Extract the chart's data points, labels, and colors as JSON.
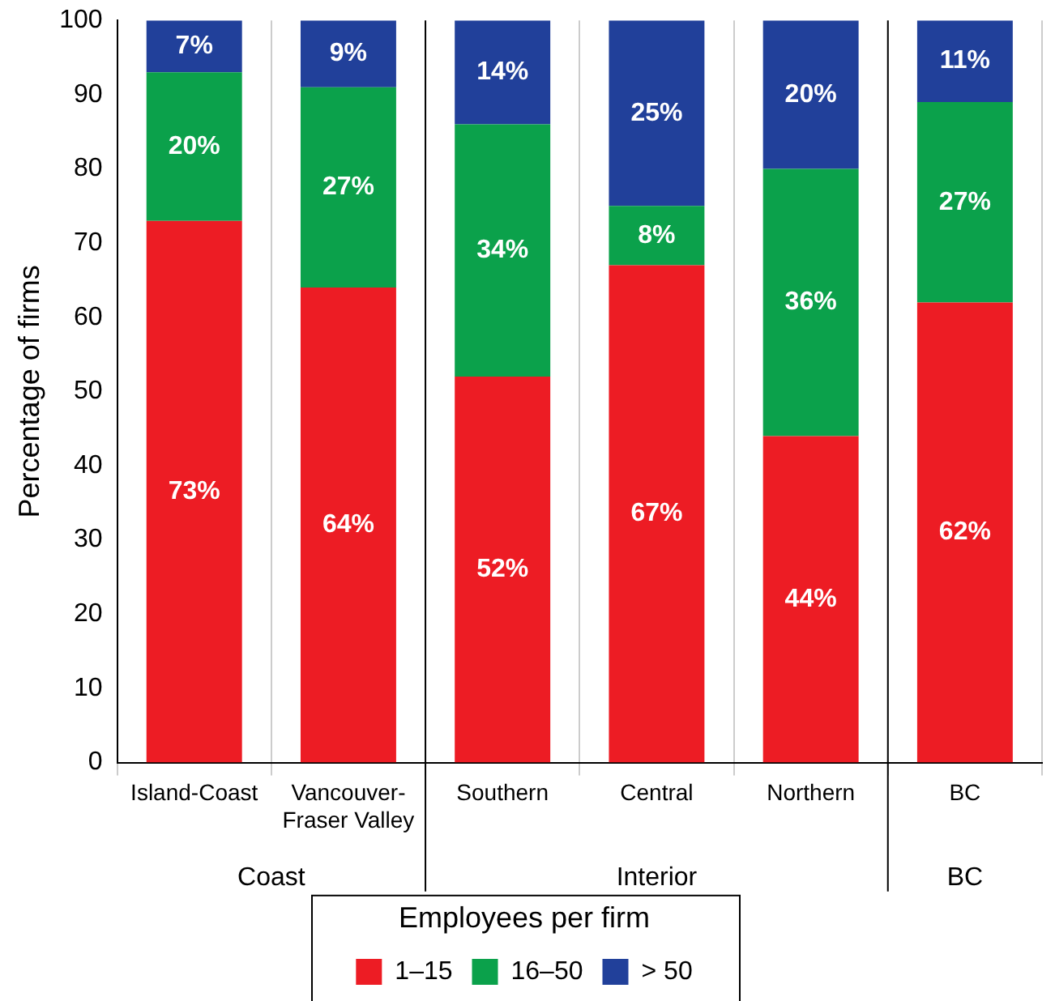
{
  "chart_data": {
    "type": "bar",
    "stacked": true,
    "ylabel": "Percentage of firms",
    "legend_title": "Employees per firm",
    "legend": "bottom",
    "grid": "x",
    "categories": [
      "Island-Coast",
      "Vancouver-Fraser Valley",
      "Southern",
      "Central",
      "Northern",
      "BC"
    ],
    "ylim": [
      0,
      100
    ],
    "yticks": [
      0,
      10,
      20,
      30,
      40,
      50,
      60,
      70,
      80,
      90,
      100
    ],
    "series": [
      {
        "name": "1–15",
        "color": "#ed1c24",
        "values": [
          73,
          64,
          52,
          67,
          44,
          62
        ],
        "value_labels": [
          "73%",
          "64%",
          "52%",
          "67%",
          "44%",
          "62%"
        ]
      },
      {
        "name": "16–50",
        "color": "#0ba14b",
        "values": [
          20,
          27,
          34,
          8,
          36,
          27
        ],
        "value_labels": [
          "20%",
          "27%",
          "34%",
          "8%",
          "36%",
          "27%"
        ]
      },
      {
        "name": "> 50",
        "color": "#21409a",
        "values": [
          7,
          9,
          14,
          25,
          20,
          11
        ],
        "value_labels": [
          "7%",
          "9%",
          "14%",
          "25%",
          "20%",
          "11%"
        ]
      }
    ],
    "annotations": [
      "Coast",
      "Interior",
      "BC"
    ]
  }
}
